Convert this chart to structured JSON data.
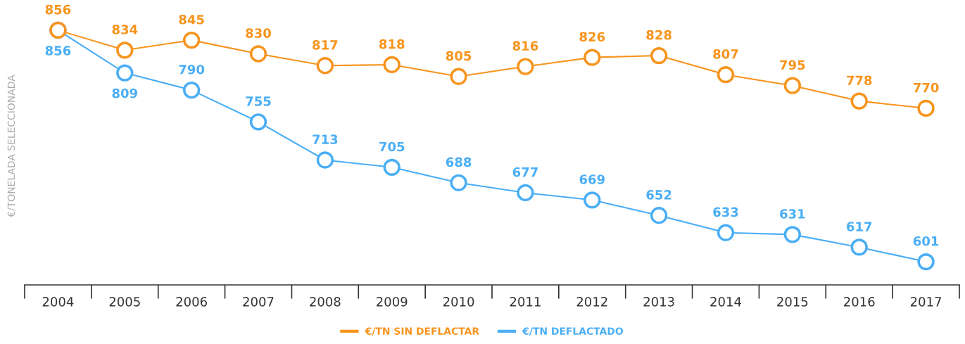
{
  "chart_data": {
    "type": "line",
    "ylabel": "€/TONELADA SELECCIONADA",
    "categories": [
      "2004",
      "2005",
      "2006",
      "2007",
      "2008",
      "2009",
      "2010",
      "2011",
      "2012",
      "2013",
      "2014",
      "2015",
      "2016",
      "2017"
    ],
    "series": [
      {
        "name": "€/TN SIN DEFLACTAR",
        "color": "#f7941d",
        "values": [
          856,
          834,
          845,
          830,
          817,
          818,
          805,
          816,
          826,
          828,
          807,
          795,
          778,
          770
        ]
      },
      {
        "name": "€/TN DEFLACTADO",
        "color": "#4aaef5",
        "values": [
          856,
          809,
          790,
          755,
          713,
          705,
          688,
          677,
          669,
          652,
          633,
          631,
          617,
          601
        ]
      }
    ],
    "tick_labels": "x",
    "data_labels": true,
    "legend": "bottom",
    "marker": "circle",
    "line_style": "solid",
    "grid": false
  }
}
